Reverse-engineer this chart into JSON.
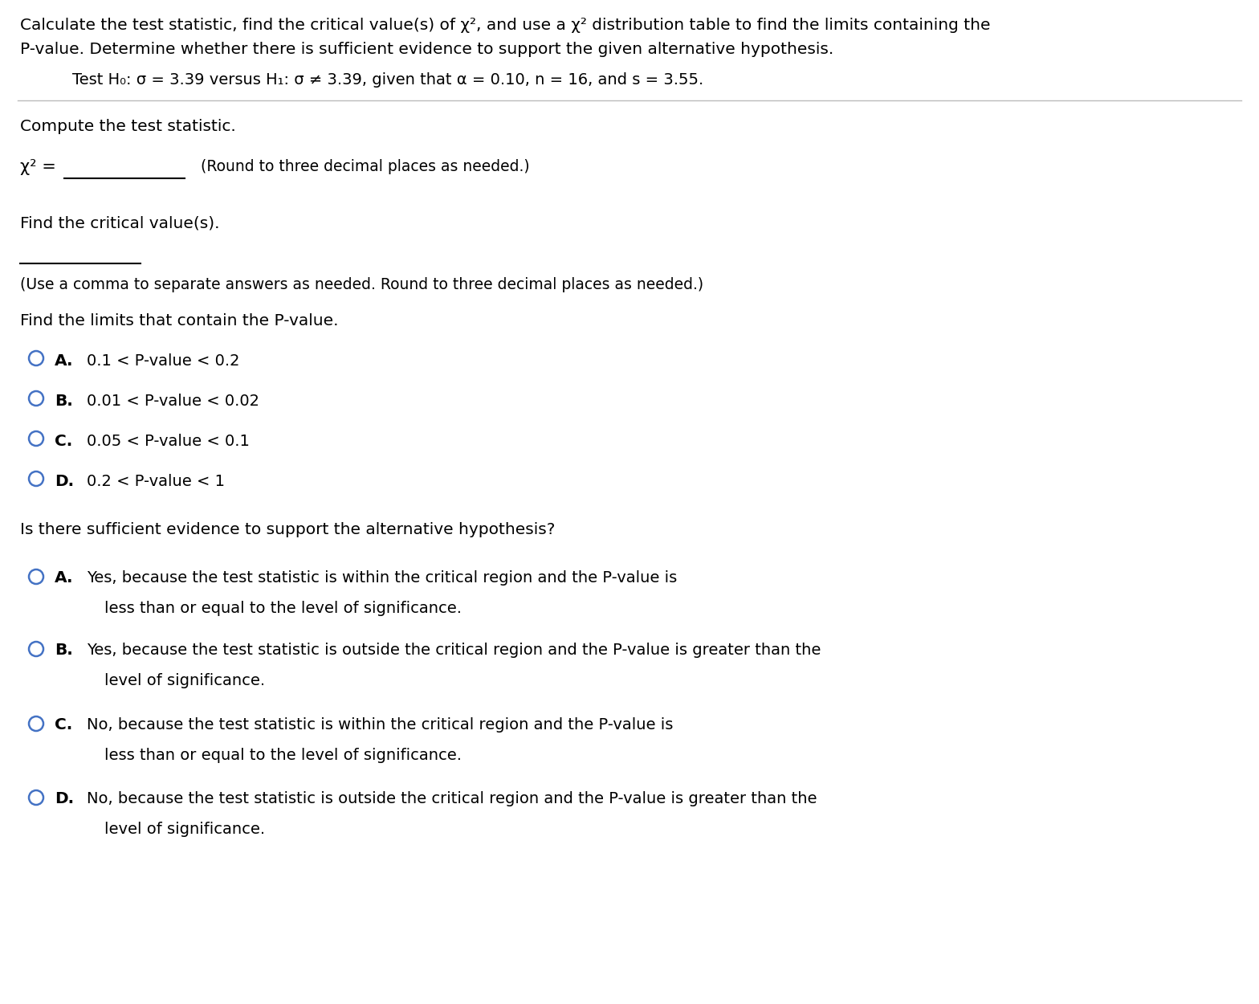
{
  "bg_color": "#ffffff",
  "text_color": "#000000",
  "intro_line1": "Calculate the test statistic, find the critical value(s) of χ², and use a χ² distribution table to find the limits containing the",
  "intro_line2": "P-value. Determine whether there is sufficient evidence to support the given alternative hypothesis.",
  "hypothesis_line": "Test H₀: σ = 3.39 versus H₁: σ ≠ 3.39, given that α = 0.10, n = 16, and s = 3.55.",
  "section1_title": "Compute the test statistic.",
  "chi2_label": "χ² =",
  "chi2_note": "(Round to three decimal places as needed.)",
  "section2_title": "Find the critical value(s).",
  "critical_note": "(Use a comma to separate answers as needed. Round to three decimal places as needed.)",
  "section3_title": "Find the limits that contain the P-value.",
  "pvalue_options": [
    {
      "label": "A.",
      "text": "0.1 < P-value < 0.2"
    },
    {
      "label": "B.",
      "text": "0.01 < P-value < 0.02"
    },
    {
      "label": "C.",
      "text": "0.05 < P-value < 0.1"
    },
    {
      "label": "D.",
      "text": "0.2 < P-value < 1"
    }
  ],
  "section4_title": "Is there sufficient evidence to support the alternative hypothesis?",
  "evidence_options": [
    {
      "label": "A.",
      "text1": "Yes, because the test statistic is within the critical region and the P-value is",
      "text2": "less than or equal to the level of significance."
    },
    {
      "label": "B.",
      "text1": "Yes, because the test statistic is outside the critical region and the P-value is greater than the",
      "text2": "level of significance."
    },
    {
      "label": "C.",
      "text1": "No, because the test statistic is within the critical region and the P-value is",
      "text2": "less than or equal to the level of significance."
    },
    {
      "label": "D.",
      "text1": "No, because the test statistic is outside the critical region and the P-value is greater than the",
      "text2": "level of significance."
    }
  ],
  "circle_color": "#4472c4",
  "separator_color": "#bbbbbb",
  "underline_color": "#000000",
  "fs_intro": 14.5,
  "fs_hyp": 14.0,
  "fs_section": 14.5,
  "fs_chi": 15.0,
  "fs_note": 13.5,
  "fs_option": 14.0,
  "fs_bold": 14.5
}
